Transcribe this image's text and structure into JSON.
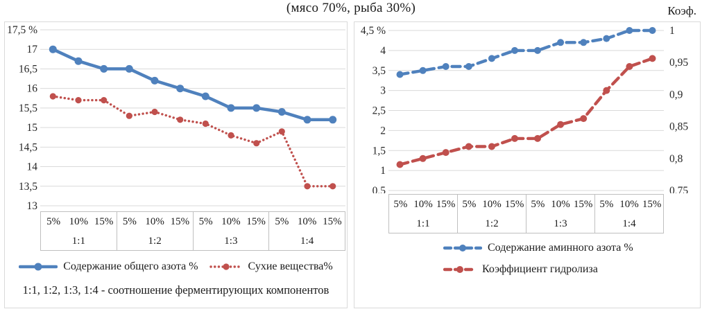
{
  "title": "(мясо 70%, рыба 30%)",
  "chart_data": [
    {
      "type": "line",
      "position": "left",
      "y_axis": {
        "min": 13,
        "max": 17.5,
        "tick_labels": [
          "17,5 %",
          "17",
          "16,5",
          "16",
          "15,5",
          "15",
          "14,5",
          "14",
          "13,5",
          "13"
        ]
      },
      "x_groups": [
        "1:1",
        "1:2",
        "1:3",
        "1:4"
      ],
      "x_subcategories": [
        "5%",
        "10%",
        "15%"
      ],
      "grid": true,
      "legend_position": "bottom",
      "series": [
        {
          "name": "Содержание общего азота %",
          "color": "#4F81BD",
          "line_style": "solid",
          "values": [
            17,
            16.7,
            16.5,
            16.5,
            16.2,
            16,
            15.8,
            15.5,
            15.5,
            15.4,
            15.2,
            15.2
          ]
        },
        {
          "name": "Сухие вещества%",
          "color": "#C0504D",
          "line_style": "dotted",
          "values": [
            15.8,
            15.7,
            15.7,
            15.3,
            15.4,
            15.2,
            15.1,
            14.8,
            14.6,
            14.9,
            13.5,
            13.5
          ]
        }
      ],
      "footnote": "1:1, 1:2, 1:3, 1:4 - соотношение ферментирующих компонентов"
    },
    {
      "type": "line",
      "position": "right",
      "y_axis": {
        "min": 0.5,
        "max": 4.5,
        "tick_labels": [
          "4,5 %",
          "4",
          "3,5",
          "3",
          "2,5",
          "2",
          "1,5",
          "1",
          "0,5"
        ]
      },
      "y2_axis": {
        "min": 0.75,
        "max": 1,
        "unit": "Коэф.",
        "tick_labels": [
          "1",
          "0,95",
          "0,9",
          "0,85",
          "0,8",
          "0,75"
        ]
      },
      "x_groups": [
        "1:1",
        "1:2",
        "1:3",
        "1:4"
      ],
      "x_subcategories": [
        "5%",
        "10%",
        "15%"
      ],
      "grid": true,
      "legend_position": "bottom",
      "series": [
        {
          "name": "Содержание аминного азота %",
          "color": "#4F81BD",
          "line_style": "dashed",
          "values": [
            3.4,
            3.5,
            3.6,
            3.6,
            3.8,
            4,
            4,
            4.2,
            4.2,
            4.3,
            4.5,
            4.5
          ]
        },
        {
          "name": "Коэффициент гидролиза",
          "color": "#C0504D",
          "line_style": "dashed",
          "values": [
            1.15,
            1.3,
            1.45,
            1.6,
            1.6,
            1.8,
            1.8,
            2.15,
            2.3,
            3,
            3.6,
            3.8
          ]
        }
      ]
    }
  ]
}
